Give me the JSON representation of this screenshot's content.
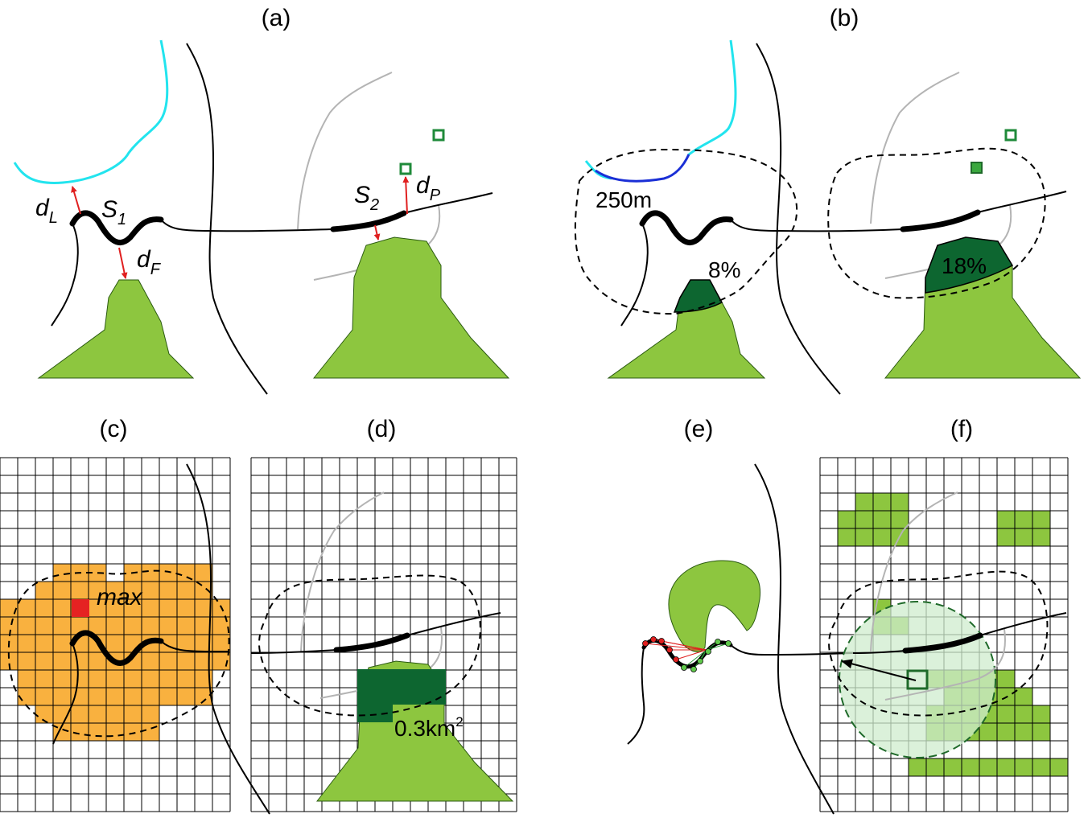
{
  "panels": {
    "a": "(a)",
    "b": "(b)",
    "c": "(c)",
    "d": "(d)",
    "e": "(e)",
    "f": "(f)"
  },
  "symbols": {
    "dL": {
      "base": "d",
      "sub": "L"
    },
    "S1": {
      "base": "S",
      "sub": "1"
    },
    "dF": {
      "base": "d",
      "sub": "F"
    },
    "S2": {
      "base": "S",
      "sub": "2"
    },
    "dP": {
      "base": "d",
      "sub": "P"
    }
  },
  "annotations": {
    "buffer": "250m",
    "coverage_left": "8%",
    "coverage_right": "18%",
    "max": "max",
    "area_value": "0.3km",
    "area_exp": "2"
  },
  "colors": {
    "lake": "#22e4ee",
    "lake_in_buffer": "#1a2fd6",
    "forest": "#8dc63f",
    "forest_in_buffer": "#0d6630",
    "buffer_cells": "#f9b13f",
    "max_cell": "#e52222",
    "light_green_circle": "#cfeccd",
    "distance_arrow": "#e02020"
  }
}
